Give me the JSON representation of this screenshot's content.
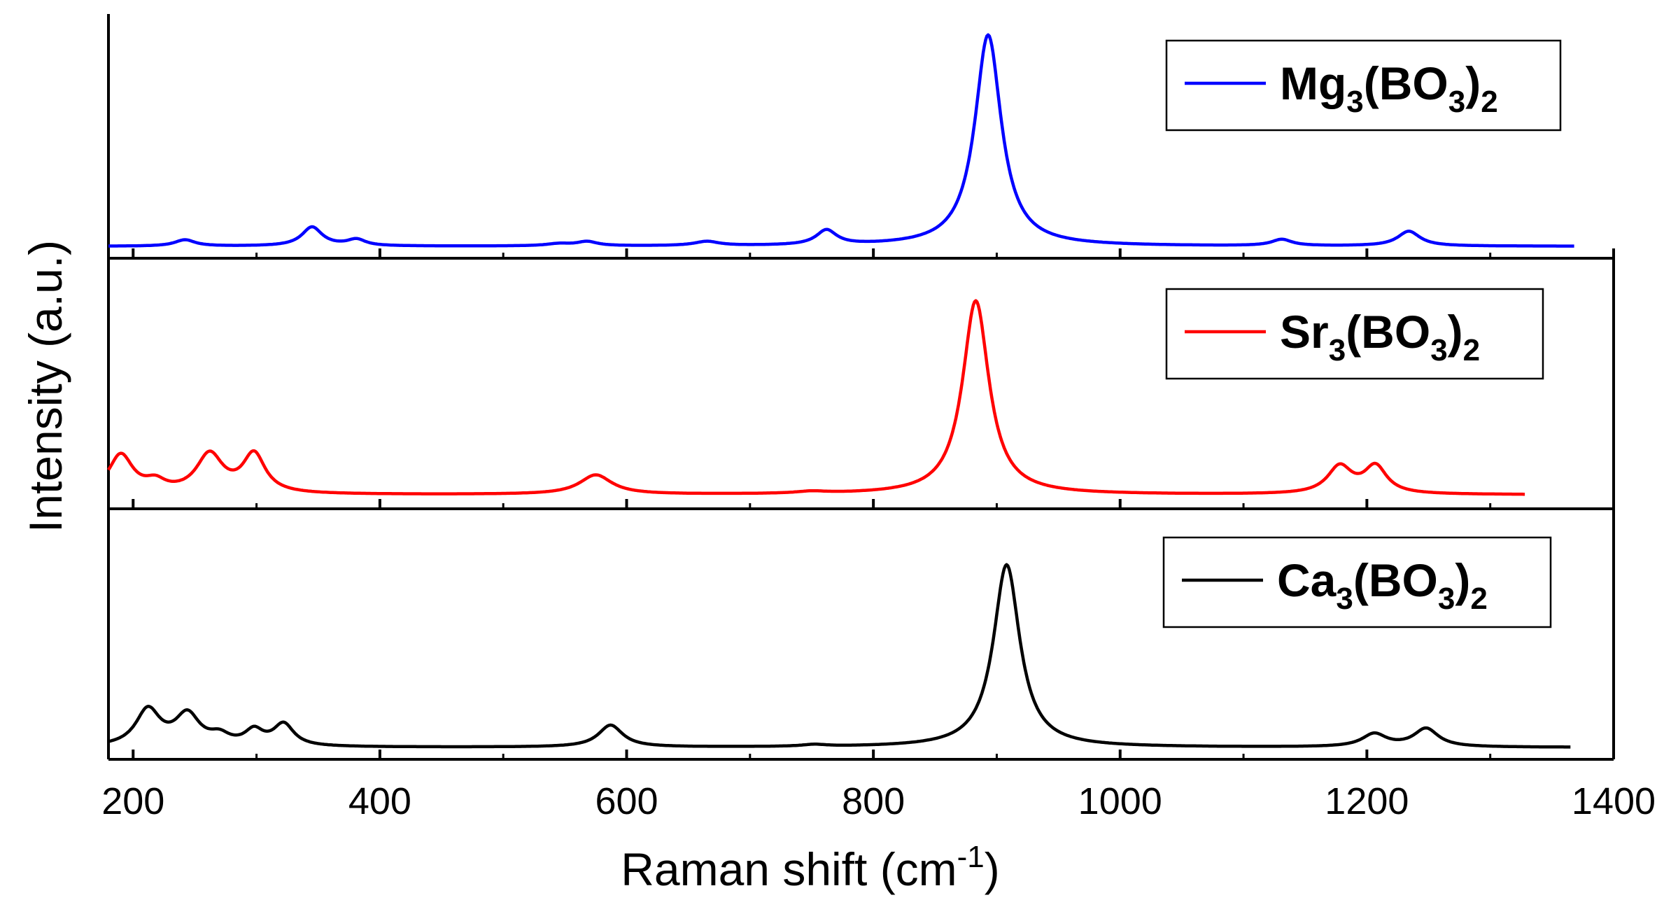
{
  "chart_data": {
    "type": "line",
    "title": "",
    "xlabel": "Raman shift (cm",
    "xlabel_sup": "-1",
    "xlabel_close": ")",
    "ylabel": "Intensity (a.u.)",
    "xlim": [
      180,
      1400
    ],
    "xticks": [
      200,
      400,
      600,
      800,
      1000,
      1200,
      1400
    ],
    "xtick_labels": [
      "200",
      "400",
      "600",
      "800",
      "1000",
      "1200",
      "1400"
    ],
    "layout": "stacked-panels",
    "legend_position": "top-right of each panel",
    "series": [
      {
        "name": "Mg3(BO3)2",
        "legend": {
          "el": "Mg",
          "n1": "3",
          "mid": "(BO",
          "n2": "3",
          "close": ")",
          "n3": "2"
        },
        "color": "#0000ff",
        "x_range": [
          180,
          1368
        ],
        "baseline": 0.05,
        "peaks": [
          {
            "x": 242,
            "h": 0.03,
            "w": 10
          },
          {
            "x": 345,
            "h": 0.09,
            "w": 10
          },
          {
            "x": 381,
            "h": 0.03,
            "w": 9
          },
          {
            "x": 545,
            "h": 0.01,
            "w": 12
          },
          {
            "x": 568,
            "h": 0.02,
            "w": 10
          },
          {
            "x": 665,
            "h": 0.02,
            "w": 12
          },
          {
            "x": 762,
            "h": 0.07,
            "w": 10
          },
          {
            "x": 893,
            "h": 1.0,
            "w": 13
          },
          {
            "x": 1131,
            "h": 0.03,
            "w": 10
          },
          {
            "x": 1234,
            "h": 0.07,
            "w": 11
          }
        ]
      },
      {
        "name": "Sr3(BO3)2",
        "legend": {
          "el": "Sr",
          "n1": "3",
          "mid": "(BO",
          "n2": "3",
          "close": ")",
          "n3": "2"
        },
        "color": "#ff0000",
        "x_range": [
          180,
          1328
        ],
        "baseline": 0.07,
        "peaks": [
          {
            "x": 190,
            "h": 0.2,
            "w": 12
          },
          {
            "x": 218,
            "h": 0.05,
            "w": 10
          },
          {
            "x": 262,
            "h": 0.2,
            "w": 13
          },
          {
            "x": 298,
            "h": 0.2,
            "w": 11
          },
          {
            "x": 575,
            "h": 0.1,
            "w": 16
          },
          {
            "x": 750,
            "h": 0.01,
            "w": 15
          },
          {
            "x": 883,
            "h": 1.0,
            "w": 13
          },
          {
            "x": 1178,
            "h": 0.14,
            "w": 12
          },
          {
            "x": 1207,
            "h": 0.14,
            "w": 11
          }
        ]
      },
      {
        "name": "Ca3(BO3)2",
        "legend": {
          "el": "Ca",
          "n1": "3",
          "mid": "(BO",
          "n2": "3",
          "close": ")",
          "n3": "2"
        },
        "color": "#000000",
        "x_range": [
          180,
          1365
        ],
        "baseline": 0.03,
        "peaks": [
          {
            "x": 212,
            "h": 0.2,
            "w": 12
          },
          {
            "x": 244,
            "h": 0.17,
            "w": 12
          },
          {
            "x": 270,
            "h": 0.05,
            "w": 10
          },
          {
            "x": 298,
            "h": 0.08,
            "w": 9
          },
          {
            "x": 322,
            "h": 0.12,
            "w": 10
          },
          {
            "x": 587,
            "h": 0.12,
            "w": 12
          },
          {
            "x": 752,
            "h": 0.01,
            "w": 12
          },
          {
            "x": 908,
            "h": 1.0,
            "w": 13
          },
          {
            "x": 1206,
            "h": 0.07,
            "w": 12
          },
          {
            "x": 1248,
            "h": 0.1,
            "w": 12
          }
        ]
      }
    ]
  }
}
